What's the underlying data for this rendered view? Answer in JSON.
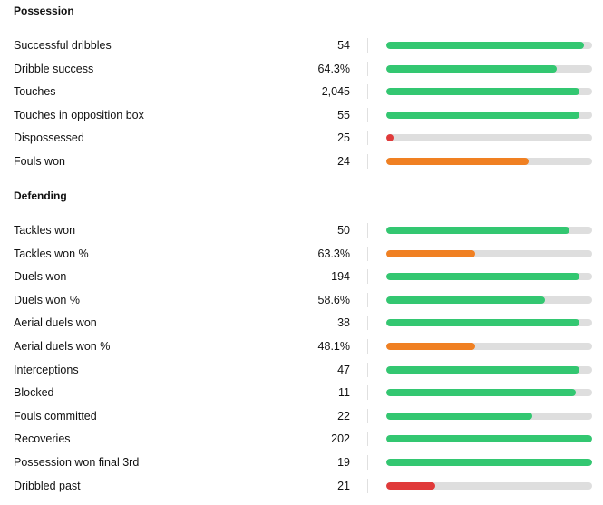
{
  "colors": {
    "good": "#33c771",
    "average": "#f08022",
    "poor": "#e03a3a",
    "track": "#dedede"
  },
  "sections": [
    {
      "title": "Possession",
      "rows": [
        {
          "label": "Successful dribbles",
          "value": "54",
          "percentile": 96,
          "rating": "good"
        },
        {
          "label": "Dribble success",
          "value": "64.3%",
          "percentile": 83,
          "rating": "good"
        },
        {
          "label": "Touches",
          "value": "2,045",
          "percentile": 94,
          "rating": "good"
        },
        {
          "label": "Touches in opposition box",
          "value": "55",
          "percentile": 94,
          "rating": "good"
        },
        {
          "label": "Dispossessed",
          "value": "25",
          "percentile": 3.5,
          "rating": "poor"
        },
        {
          "label": "Fouls won",
          "value": "24",
          "percentile": 69,
          "rating": "average"
        }
      ]
    },
    {
      "title": "Defending",
      "rows": [
        {
          "label": "Tackles won",
          "value": "50",
          "percentile": 89,
          "rating": "good"
        },
        {
          "label": "Tackles won %",
          "value": "63.3%",
          "percentile": 43,
          "rating": "average"
        },
        {
          "label": "Duels won",
          "value": "194",
          "percentile": 94,
          "rating": "good"
        },
        {
          "label": "Duels won %",
          "value": "58.6%",
          "percentile": 77,
          "rating": "good"
        },
        {
          "label": "Aerial duels won",
          "value": "38",
          "percentile": 94,
          "rating": "good"
        },
        {
          "label": "Aerial duels won %",
          "value": "48.1%",
          "percentile": 43,
          "rating": "average"
        },
        {
          "label": "Interceptions",
          "value": "47",
          "percentile": 94,
          "rating": "good"
        },
        {
          "label": "Blocked",
          "value": "11",
          "percentile": 92,
          "rating": "good"
        },
        {
          "label": "Fouls committed",
          "value": "22",
          "percentile": 71,
          "rating": "good"
        },
        {
          "label": "Recoveries",
          "value": "202",
          "percentile": 100,
          "rating": "good"
        },
        {
          "label": "Possession won final 3rd",
          "value": "19",
          "percentile": 100,
          "rating": "good"
        },
        {
          "label": "Dribbled past",
          "value": "21",
          "percentile": 24,
          "rating": "poor"
        }
      ]
    }
  ]
}
